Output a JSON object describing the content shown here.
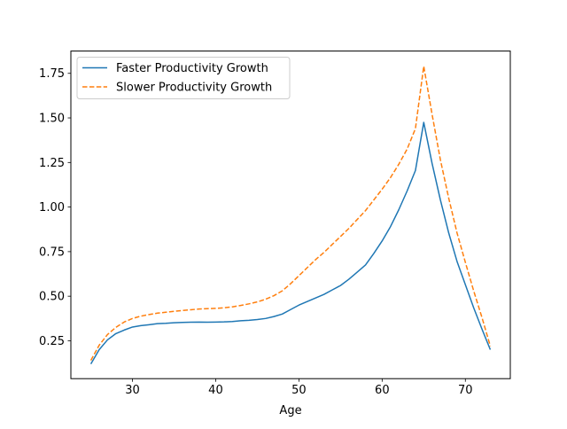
{
  "chart_data": {
    "type": "line",
    "title": "",
    "xlabel": "Age",
    "ylabel": "",
    "xlim": [
      22.6,
      75.4
    ],
    "ylim": [
      0.0375,
      1.875
    ],
    "xticks": [
      30,
      40,
      50,
      60,
      70
    ],
    "xtick_labels": [
      "30",
      "40",
      "50",
      "60",
      "70"
    ],
    "yticks": [
      0.25,
      0.5,
      0.75,
      1.0,
      1.25,
      1.5,
      1.75
    ],
    "ytick_labels": [
      "0.25",
      "0.50",
      "0.75",
      "1.00",
      "1.25",
      "1.50",
      "1.75"
    ],
    "grid": false,
    "legend_position": "top-left",
    "x": [
      25,
      26,
      27,
      28,
      29,
      30,
      31,
      32,
      33,
      34,
      35,
      36,
      37,
      38,
      39,
      40,
      41,
      42,
      43,
      44,
      45,
      46,
      47,
      48,
      49,
      50,
      51,
      52,
      53,
      54,
      55,
      56,
      57,
      58,
      59,
      60,
      61,
      62,
      63,
      64,
      65,
      66,
      67,
      68,
      69,
      70,
      71,
      72,
      73
    ],
    "series": [
      {
        "name": "Faster Productivity Growth",
        "color": "#1f77b4",
        "style": "solid",
        "values": [
          0.12,
          0.2,
          0.255,
          0.29,
          0.31,
          0.327,
          0.335,
          0.34,
          0.346,
          0.348,
          0.351,
          0.353,
          0.354,
          0.355,
          0.354,
          0.355,
          0.356,
          0.358,
          0.362,
          0.365,
          0.369,
          0.375,
          0.386,
          0.4,
          0.425,
          0.45,
          0.47,
          0.49,
          0.51,
          0.535,
          0.56,
          0.595,
          0.635,
          0.675,
          0.74,
          0.81,
          0.89,
          0.985,
          1.09,
          1.205,
          1.475,
          1.245,
          1.04,
          0.855,
          0.695,
          0.565,
          0.435,
          0.315,
          0.2
        ]
      },
      {
        "name": "Slower Productivity Growth",
        "color": "#ff7f0e",
        "style": "dashed",
        "values": [
          0.14,
          0.225,
          0.285,
          0.325,
          0.355,
          0.375,
          0.388,
          0.397,
          0.405,
          0.41,
          0.415,
          0.42,
          0.424,
          0.428,
          0.43,
          0.432,
          0.435,
          0.44,
          0.448,
          0.457,
          0.468,
          0.483,
          0.503,
          0.53,
          0.57,
          0.615,
          0.66,
          0.705,
          0.745,
          0.79,
          0.835,
          0.88,
          0.93,
          0.98,
          1.04,
          1.1,
          1.165,
          1.24,
          1.325,
          1.44,
          1.79,
          1.52,
          1.265,
          1.05,
          0.855,
          0.69,
          0.53,
          0.38,
          0.22
        ]
      }
    ]
  }
}
